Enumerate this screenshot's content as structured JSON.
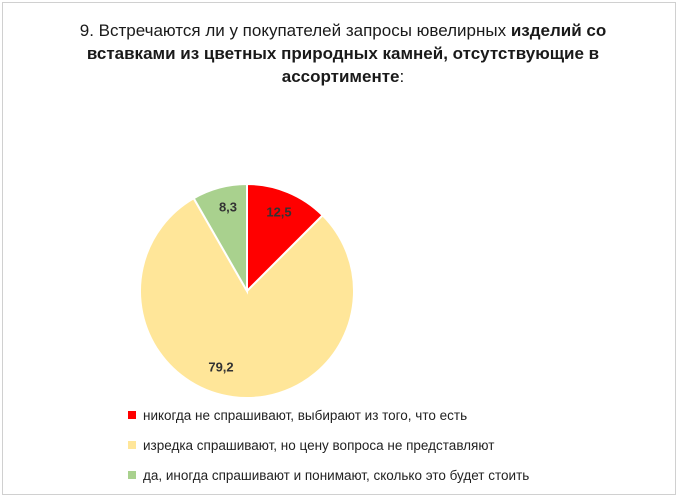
{
  "chart_data": {
    "type": "pie",
    "title_parts": [
      {
        "text": "9. Встречаются ли у покупателей запросы ювелирных ",
        "bold": false
      },
      {
        "text": "изделий со вставками из цветных природных камней, отсутствующие в ассортименте",
        "bold": true
      },
      {
        "text": ":",
        "bold": false
      }
    ],
    "slices": [
      {
        "label": "никогда не спрашивают, выбирают из того, что есть",
        "value": 12.5,
        "value_label": "12,5",
        "color": "#ff0000"
      },
      {
        "label": "изредка спрашивают, но цену вопроса не представляют",
        "value": 79.2,
        "value_label": "79,2",
        "color": "#ffe699"
      },
      {
        "label": "да, иногда спрашивают и понимают, сколько это будет стоить",
        "value": 8.3,
        "value_label": "8,3",
        "color": "#a9d18e"
      }
    ],
    "legend_position": "bottom"
  }
}
